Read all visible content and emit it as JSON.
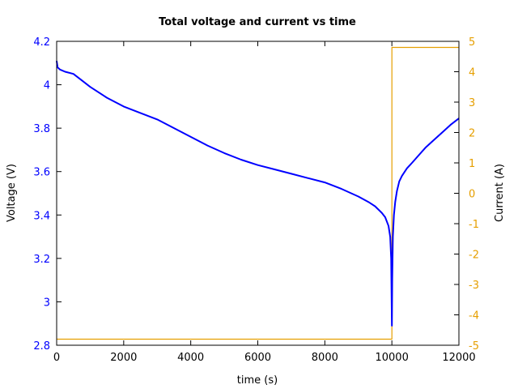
{
  "chart_data": {
    "type": "line",
    "title": "Total voltage and current vs time",
    "xlabel": "time (s)",
    "ylabel": "Voltage (V)",
    "y2label": "Current (A)",
    "xlim": [
      0,
      12000
    ],
    "ylim": [
      2.8,
      4.2
    ],
    "y2lim": [
      -5,
      5
    ],
    "grid": false,
    "legend": null,
    "x_ticks": [
      0,
      2000,
      4000,
      6000,
      8000,
      10000,
      12000
    ],
    "y_ticks": [
      2.8,
      3,
      3.2,
      3.4,
      3.6,
      3.8,
      4,
      4.2
    ],
    "y2_ticks": [
      -5,
      -4,
      -3,
      -2,
      -1,
      0,
      1,
      2,
      3,
      4,
      5
    ],
    "colors": {
      "voltage": "#0000ff",
      "current": "#e69f00",
      "left_axis_text": "#0000ff",
      "right_axis_text": "#e69f00",
      "frame": "#000000"
    },
    "series": [
      {
        "name": "Voltage",
        "axis": "left",
        "color": "#0000ff",
        "x": [
          0,
          30,
          100,
          250,
          500,
          750,
          1000,
          1500,
          2000,
          2500,
          3000,
          3500,
          4000,
          4500,
          5000,
          5500,
          6000,
          6500,
          7000,
          7500,
          8000,
          8500,
          9000,
          9300,
          9500,
          9700,
          9800,
          9900,
          9950,
          9980,
          10000,
          10010,
          10030,
          10060,
          10100,
          10150,
          10220,
          10300,
          10450,
          10600,
          10800,
          11000,
          11250,
          11500,
          11750,
          12000
        ],
        "values": [
          4.11,
          4.08,
          4.07,
          4.06,
          4.05,
          4.02,
          3.99,
          3.94,
          3.9,
          3.87,
          3.84,
          3.8,
          3.76,
          3.72,
          3.685,
          3.655,
          3.63,
          3.61,
          3.59,
          3.57,
          3.55,
          3.52,
          3.485,
          3.46,
          3.44,
          3.41,
          3.39,
          3.35,
          3.3,
          3.2,
          2.89,
          3.1,
          3.3,
          3.4,
          3.46,
          3.51,
          3.555,
          3.58,
          3.615,
          3.64,
          3.675,
          3.71,
          3.745,
          3.78,
          3.815,
          3.845
        ]
      },
      {
        "name": "Current",
        "axis": "right",
        "color": "#e69f00",
        "x": [
          0,
          10000,
          10000,
          12000
        ],
        "values": [
          -4.8,
          -4.8,
          4.8,
          4.8
        ]
      }
    ]
  }
}
